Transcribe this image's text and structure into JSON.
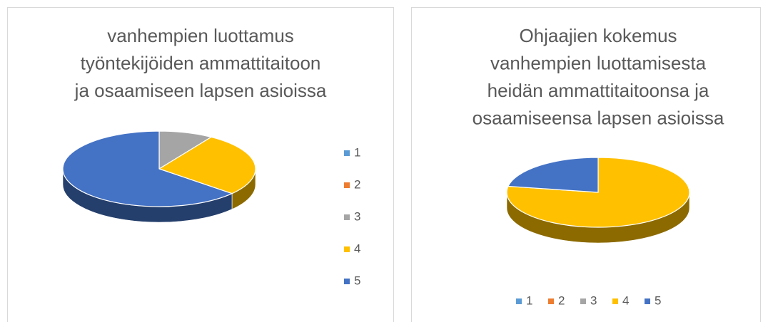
{
  "chart_data": [
    {
      "type": "pie3d",
      "title": [
        "vanhempien luottamus",
        "työntekijöiden ammattitaitoon",
        "ja osaamiseen lapsen asioissa"
      ],
      "categories": [
        "1",
        "2",
        "3",
        "4",
        "5"
      ],
      "values": [
        0,
        0,
        1,
        3,
        7
      ],
      "colors": [
        "#5b9bd5",
        "#ed7d31",
        "#a5a5a5",
        "#ffc000",
        "#4472c4"
      ],
      "legend": "right"
    },
    {
      "type": "pie3d",
      "title": [
        "Ohjaajien kokemus",
        "vanhempien luottamisesta",
        "heidän ammattitaitoonsa ja",
        "osaamiseensa lapsen asioissa"
      ],
      "categories": [
        "1",
        "2",
        "3",
        "4",
        "5"
      ],
      "values": [
        0,
        0,
        0,
        7,
        2
      ],
      "colors": [
        "#5b9bd5",
        "#ed7d31",
        "#a5a5a5",
        "#ffc000",
        "#4472c4"
      ],
      "legend": "bottom"
    }
  ]
}
